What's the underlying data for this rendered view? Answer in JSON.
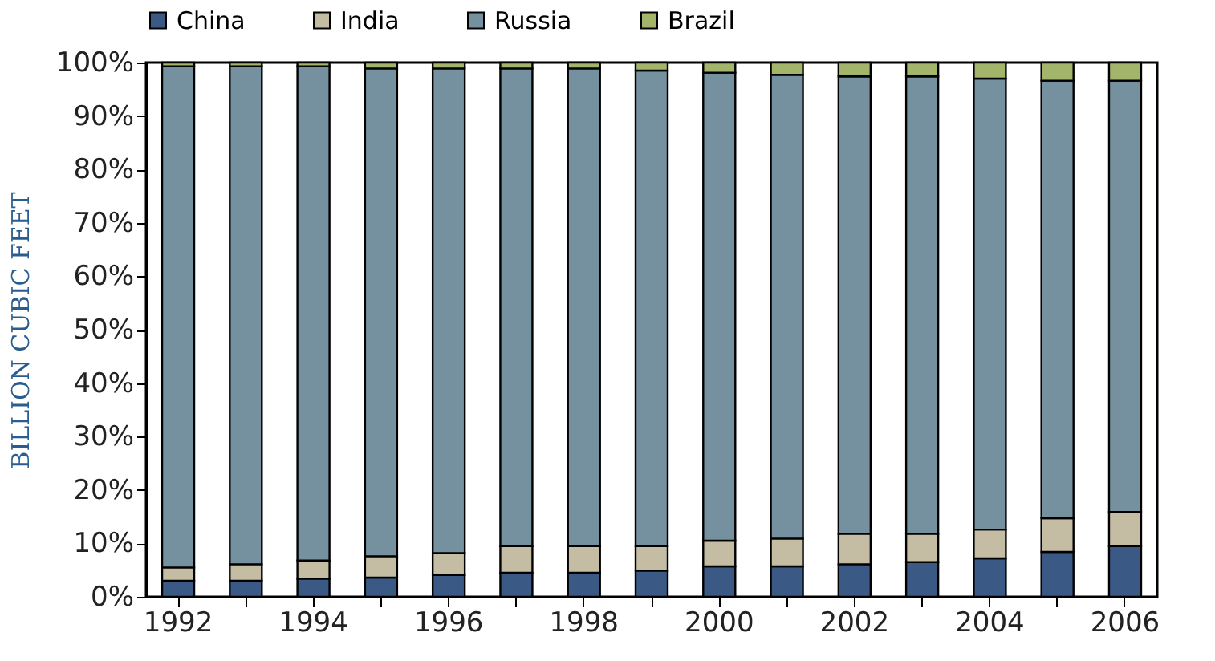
{
  "chart_data": {
    "type": "bar",
    "stacked": true,
    "ylabel": "BILLION CUBIC FEET",
    "categories": [
      "1992",
      null,
      "1994",
      null,
      "1996",
      null,
      "1998",
      null,
      "2000",
      null,
      "2002",
      null,
      "2004",
      null,
      "2006"
    ],
    "series": [
      {
        "name": "China",
        "color": "#3a5a85",
        "values": [
          3.0,
          3.0,
          3.4,
          3.6,
          4.1,
          4.5,
          4.5,
          4.9,
          5.7,
          5.7,
          6.1,
          6.5,
          7.2,
          8.4,
          9.5
        ]
      },
      {
        "name": "India",
        "color": "#c4bca3",
        "values": [
          2.5,
          3.1,
          3.4,
          4.0,
          4.1,
          5.0,
          5.0,
          4.6,
          4.8,
          5.2,
          5.7,
          5.3,
          5.4,
          6.3,
          6.4
        ]
      },
      {
        "name": "Russia",
        "color": "#7591a0",
        "values": [
          93.8,
          93.2,
          92.5,
          91.3,
          90.7,
          89.4,
          89.4,
          89.0,
          87.6,
          86.8,
          85.6,
          85.6,
          84.4,
          81.9,
          80.7
        ]
      },
      {
        "name": "Brazil",
        "color": "#a3b56b",
        "values": [
          0.7,
          0.7,
          0.7,
          1.1,
          1.1,
          1.1,
          1.1,
          1.5,
          1.9,
          2.3,
          2.6,
          2.6,
          3.0,
          3.4,
          3.4
        ]
      }
    ],
    "ylim": [
      0,
      100
    ],
    "yticks": [
      {
        "value": 0,
        "label": "0%"
      },
      {
        "value": 10,
        "label": "10%"
      },
      {
        "value": 20,
        "label": "20%"
      },
      {
        "value": 30,
        "label": "30%"
      },
      {
        "value": 40,
        "label": "40%"
      },
      {
        "value": 50,
        "label": "50%"
      },
      {
        "value": 60,
        "label": "60%"
      },
      {
        "value": 70,
        "label": "70%"
      },
      {
        "value": 80,
        "label": "80%"
      },
      {
        "value": 90,
        "label": "90%"
      },
      {
        "value": 100,
        "label": "100%"
      }
    ],
    "grid": false,
    "legend": "top"
  }
}
